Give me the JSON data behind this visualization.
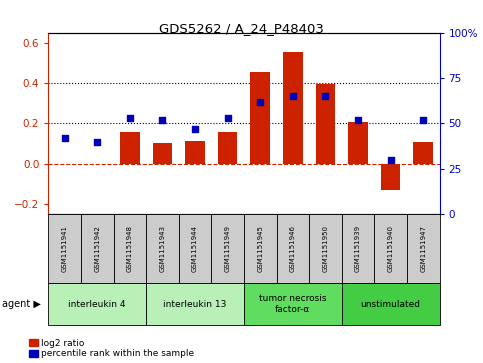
{
  "title": "GDS5262 / A_24_P48403",
  "samples": [
    "GSM1151941",
    "GSM1151942",
    "GSM1151948",
    "GSM1151943",
    "GSM1151944",
    "GSM1151949",
    "GSM1151945",
    "GSM1151946",
    "GSM1151950",
    "GSM1151939",
    "GSM1151940",
    "GSM1151947"
  ],
  "log2_ratio": [
    0.0,
    0.0,
    0.155,
    0.105,
    0.115,
    0.155,
    0.455,
    0.555,
    0.395,
    0.205,
    -0.13,
    0.11
  ],
  "percentile_rank": [
    42,
    40,
    53,
    52,
    47,
    53,
    62,
    65,
    65,
    52,
    30,
    52
  ],
  "agents": [
    {
      "label": "interleukin 4",
      "start": 0,
      "end": 3,
      "color": "#b8f0b8"
    },
    {
      "label": "interleukin 13",
      "start": 3,
      "end": 6,
      "color": "#b8f0b8"
    },
    {
      "label": "tumor necrosis\nfactor-α",
      "start": 6,
      "end": 9,
      "color": "#60dd60"
    },
    {
      "label": "unstimulated",
      "start": 9,
      "end": 12,
      "color": "#44cc44"
    }
  ],
  "bar_color": "#cc2200",
  "dot_color": "#0000bb",
  "ylim_left": [
    -0.25,
    0.65
  ],
  "ylim_right": [
    0,
    100
  ],
  "yticks_left": [
    -0.2,
    0.0,
    0.2,
    0.4,
    0.6
  ],
  "yticks_right": [
    0,
    25,
    50,
    75,
    100
  ],
  "hlines": [
    0.2,
    0.4
  ],
  "bg_color": "#ffffff",
  "sample_box_color": "#cccccc",
  "legend_items": [
    {
      "color": "#cc2200",
      "label": "log2 ratio"
    },
    {
      "color": "#0000bb",
      "label": "percentile rank within the sample"
    }
  ]
}
